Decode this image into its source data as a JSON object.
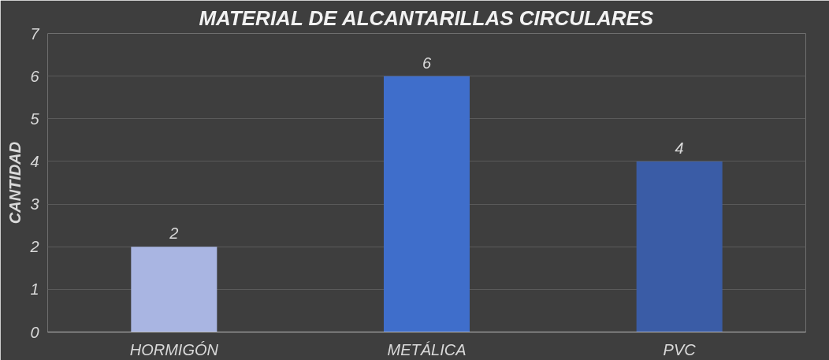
{
  "chart_data": {
    "type": "bar",
    "title": "MATERIAL DE ALCANTARILLAS CIRCULARES",
    "ylabel": "CANTIDAD",
    "categories": [
      "HORMIGÓN",
      "METÁLICA",
      "PVC"
    ],
    "values": [
      2,
      6,
      4
    ],
    "colors": [
      "#a9b5e2",
      "#3f6ecb",
      "#3a5ca6"
    ],
    "ylim": [
      0,
      7
    ],
    "yticks": [
      0,
      1,
      2,
      3,
      4,
      5,
      6,
      7
    ],
    "grid": "y",
    "data_labels": true
  }
}
